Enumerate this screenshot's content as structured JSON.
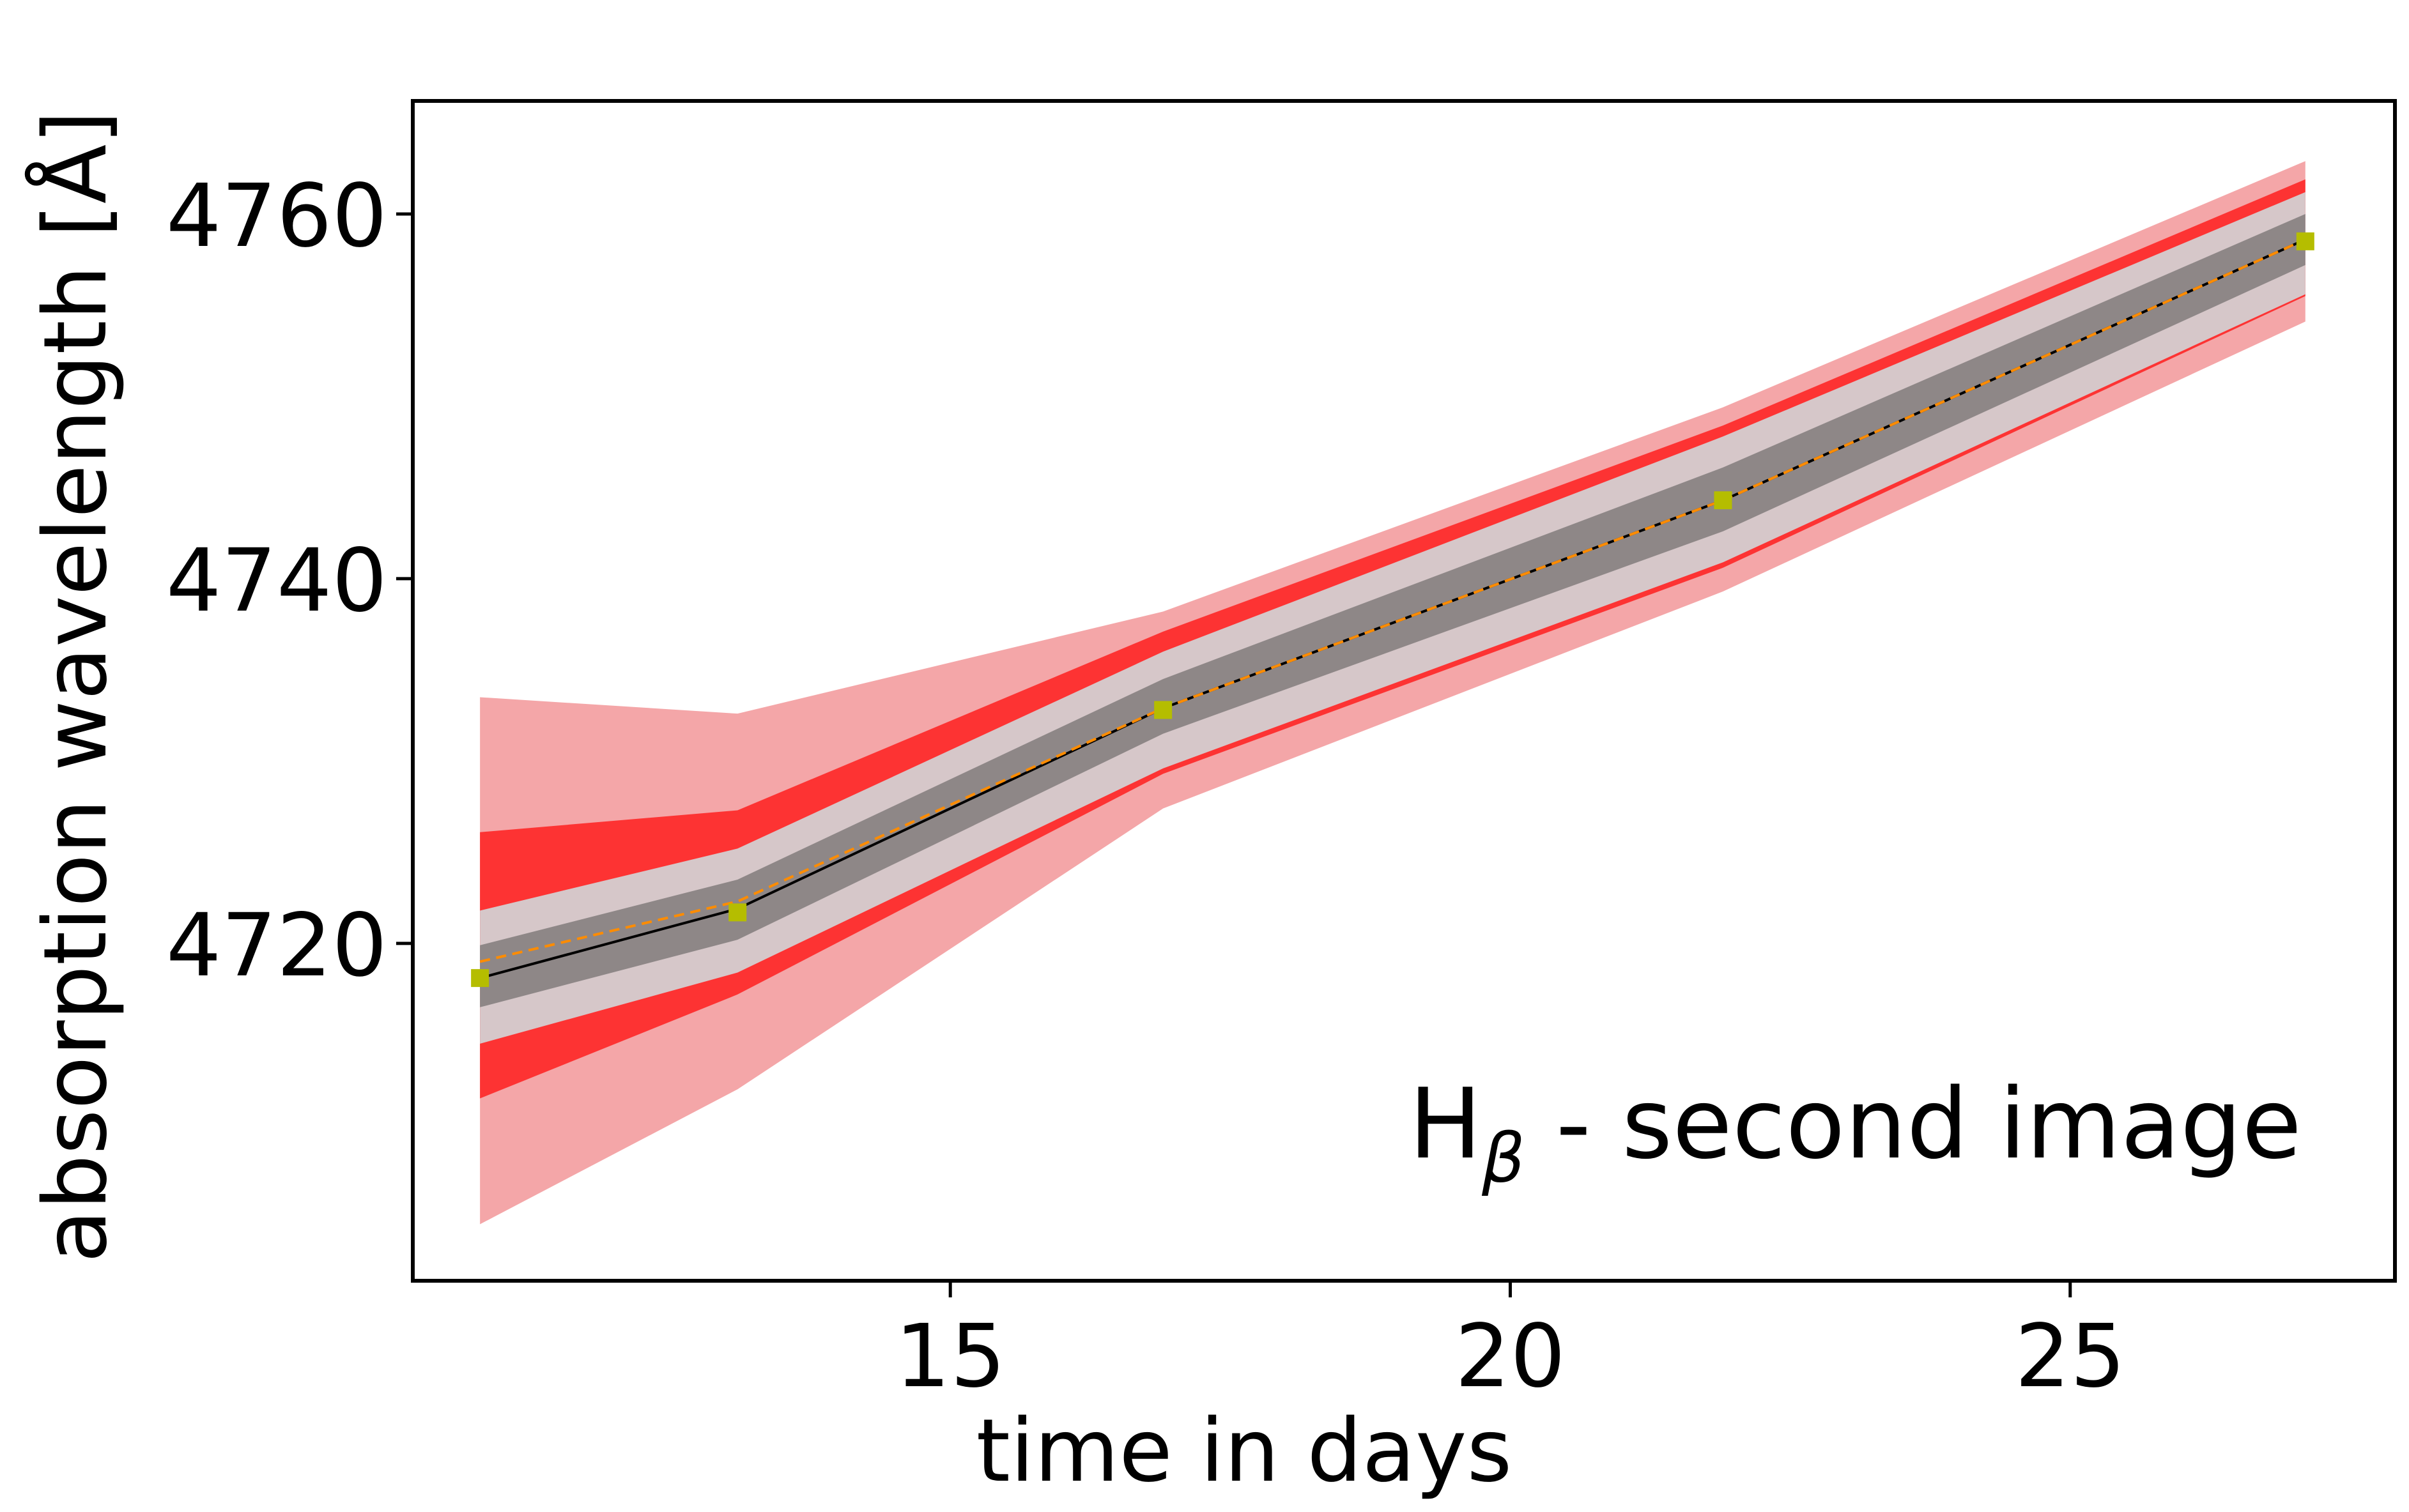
{
  "chart_data": {
    "type": "line",
    "title": "",
    "xlabel": "time in days",
    "ylabel": "absorption wavelength [Å]",
    "xlim": [
      10.2,
      27.9
    ],
    "ylim": [
      4701.5,
      4766.2
    ],
    "xticks": [
      15,
      20,
      25
    ],
    "yticks": [
      4720,
      4740,
      4760
    ],
    "grid": false,
    "annotation": {
      "main": "H",
      "subscript": "β",
      "suffix": " - second image",
      "placement": "bottom-right"
    },
    "x": [
      10.8,
      13.1,
      16.9,
      21.9,
      27.1
    ],
    "bands": [
      {
        "color": "#f4a6a8",
        "lower": [
          4704.6,
          4712.0,
          4727.4,
          4739.3,
          4754.1
        ],
        "upper": [
          4733.5,
          4732.6,
          4738.2,
          4749.4,
          4762.9
        ]
      },
      {
        "color": "#fd3333",
        "lower": [
          4711.5,
          4717.2,
          4729.3,
          4740.6,
          4755.5
        ],
        "upper": [
          4726.1,
          4727.3,
          4737.1,
          4748.4,
          4761.9
        ]
      },
      {
        "color": "#d6c7c9",
        "lower": [
          4714.5,
          4718.4,
          4729.6,
          4740.9,
          4755.6
        ],
        "upper": [
          4721.8,
          4725.2,
          4736.0,
          4747.8,
          4761.2
        ]
      },
      {
        "color": "#8e8787",
        "lower": [
          4716.5,
          4720.2,
          4731.5,
          4742.6,
          4757.2
        ],
        "upper": [
          4719.9,
          4723.5,
          4734.5,
          4746.1,
          4760.0
        ]
      }
    ],
    "series": [
      {
        "style": "solid",
        "color": "#000000",
        "values": [
          4718.1,
          4721.9,
          4732.9,
          4744.3,
          4758.6
        ]
      },
      {
        "style": "dashed",
        "color": "#ff8c00",
        "values": [
          4719.0,
          4722.3,
          4732.9,
          4744.3,
          4758.6
        ]
      },
      {
        "style": "markers",
        "color": "#b5bd00",
        "values": [
          4718.1,
          4721.7,
          4732.8,
          4744.3,
          4758.5
        ]
      }
    ]
  }
}
